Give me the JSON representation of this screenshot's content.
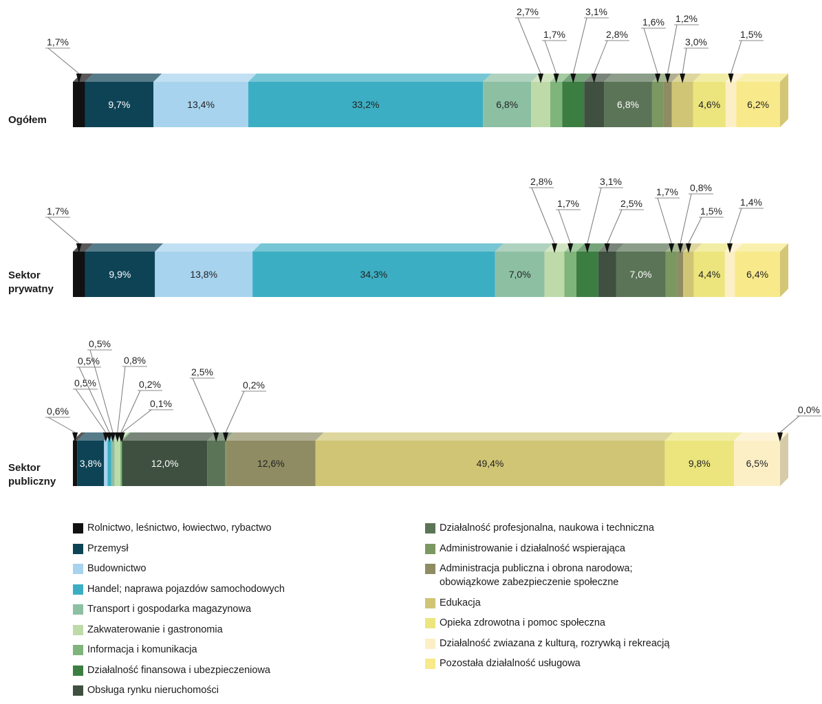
{
  "chart_data": {
    "type": "bar",
    "orientation": "horizontal-stacked-100%",
    "categories": [
      "Rolnictwo, leśnictwo, łowiectwo, rybactwo",
      "Przemysł",
      "Budownictwo",
      "Handel; naprawa pojazdów samochodowych",
      "Transport i gospodarka magazynowa",
      "Zakwaterowanie i gastronomia",
      "Informacja i komunikacja",
      "Działalność finansowa i ubezpieczeniowa",
      "Obsługa rynku nieruchomości",
      "Działalność profesjonalna, naukowa i techniczna",
      "Administrowanie i działalność wspierająca",
      "Administracja publiczna i obrona narodowa;\nobowiązkowe zabezpieczenie społeczne",
      "Edukacja",
      "Opieka zdrowotna i pomoc społeczna",
      "Działalność zwiazana z kulturą, rozrywką i rekreacją",
      "Pozostała działalność usługowa"
    ],
    "colors": [
      "#111111",
      "#0e4356",
      "#a8d3ee",
      "#3caec3",
      "#8dbfa3",
      "#bedaa9",
      "#7fb47a",
      "#3c7d42",
      "#3f5040",
      "#5b7457",
      "#7c9862",
      "#8f8c63",
      "#cfc575",
      "#ece57e",
      "#fcefc6",
      "#f8e98b"
    ],
    "series": [
      {
        "name": "Ogółem",
        "values": [
          1.7,
          9.7,
          13.4,
          33.2,
          6.8,
          2.7,
          1.7,
          3.1,
          2.8,
          6.8,
          1.6,
          1.2,
          3.0,
          4.6,
          1.5,
          6.2
        ],
        "labels": [
          "1,7%",
          "9,7%",
          "13,4%",
          "33,2%",
          "6,8%",
          "2,7%",
          "1,7%",
          "3,1%",
          "2,8%",
          "6,8%",
          "1,6%",
          "1,2%",
          "3,0%",
          "4,6%",
          "1,5%",
          "6,2%"
        ]
      },
      {
        "name": "Sektor\nprywatny",
        "values": [
          1.7,
          9.9,
          13.8,
          34.3,
          7.0,
          2.8,
          1.7,
          3.1,
          2.5,
          7.0,
          1.7,
          0.8,
          1.5,
          4.4,
          1.4,
          6.4
        ],
        "labels": [
          "1,7%",
          "9,9%",
          "13,8%",
          "34,3%",
          "7,0%",
          "2,8%",
          "1,7%",
          "3,1%",
          "2,5%",
          "7,0%",
          "1,7%",
          "0,8%",
          "1,5%",
          "4,4%",
          "1,4%",
          "6,4%"
        ]
      },
      {
        "name": "Sektor\npubliczny",
        "values": [
          0.6,
          3.8,
          0.5,
          0.5,
          0.5,
          0.8,
          0.2,
          0.1,
          12.0,
          2.5,
          0.2,
          12.6,
          49.4,
          9.8,
          6.5,
          0.0
        ],
        "labels": [
          "0,6%",
          "3,8%",
          "0,5%",
          "0,5%",
          "0,5%",
          "0,8%",
          "0,2%",
          "0,1%",
          "12,0%",
          "2,5%",
          "0,2%",
          "12,6%",
          "49,4%",
          "9,8%",
          "6,5%",
          "0,0%"
        ]
      }
    ],
    "legend_position": "bottom",
    "grid": false
  }
}
